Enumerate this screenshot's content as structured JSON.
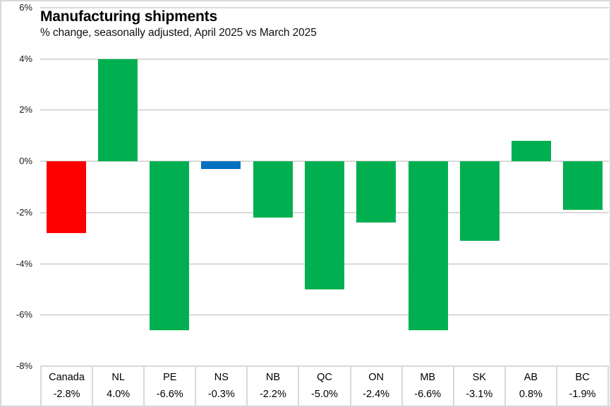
{
  "chart_data": {
    "type": "bar",
    "title": "Manufacturing shipments",
    "subtitle": "% change, seasonally adjusted, April 2025 vs March 2025",
    "categories": [
      "Canada",
      "NL",
      "PE",
      "NS",
      "NB",
      "QC",
      "ON",
      "MB",
      "SK",
      "AB",
      "BC"
    ],
    "values": [
      -2.8,
      4.0,
      -6.6,
      -0.3,
      -2.2,
      -5.0,
      -2.4,
      -6.6,
      -3.1,
      0.8,
      -1.9
    ],
    "value_labels": [
      "-2.8%",
      "4.0%",
      "-6.6%",
      "-0.3%",
      "-2.2%",
      "-5.0%",
      "-2.4%",
      "-6.6%",
      "-3.1%",
      "0.8%",
      "-1.9%"
    ],
    "bar_colors": [
      "#FF0000",
      "#00B050",
      "#00B050",
      "#0070C0",
      "#00B050",
      "#00B050",
      "#00B050",
      "#00B050",
      "#00B050",
      "#00B050",
      "#00B050"
    ],
    "ylim": [
      -8,
      6
    ],
    "ytick_step": 2,
    "ytick_labels": [
      "6%",
      "4%",
      "2%",
      "0%",
      "-2%",
      "-4%",
      "-6%",
      "-8%"
    ],
    "grid": "horizontal-only",
    "legend": "none",
    "colors": {
      "gridline": "#D9D9D9",
      "frame_border": "#D8D8D8",
      "text": "#000000",
      "canada_red": "#FF0000",
      "province_green": "#00B050",
      "ns_blue": "#0070C0"
    }
  }
}
